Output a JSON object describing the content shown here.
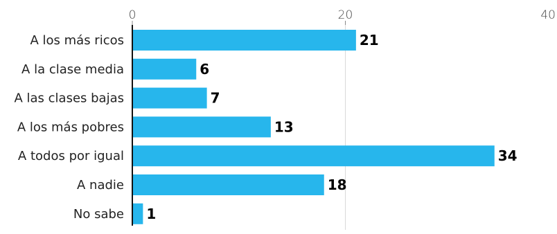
{
  "chart_data": {
    "type": "bar",
    "orientation": "horizontal",
    "categories": [
      "A los más ricos",
      "A la clase media",
      "A las clases bajas",
      "A los más pobres",
      "A todos por igual",
      "A nadie",
      "No sabe"
    ],
    "values": [
      21,
      6,
      7,
      13,
      34,
      18,
      1
    ],
    "xlim": [
      0,
      40
    ],
    "xticks": [
      0,
      20,
      40
    ],
    "title": "",
    "xlabel": "",
    "ylabel": "",
    "grid": true,
    "legend": "none",
    "colors": {
      "bar": "#27b6ec",
      "gridline": "#d9d9d9",
      "axis": "#111111",
      "value_label": "#000000"
    }
  }
}
